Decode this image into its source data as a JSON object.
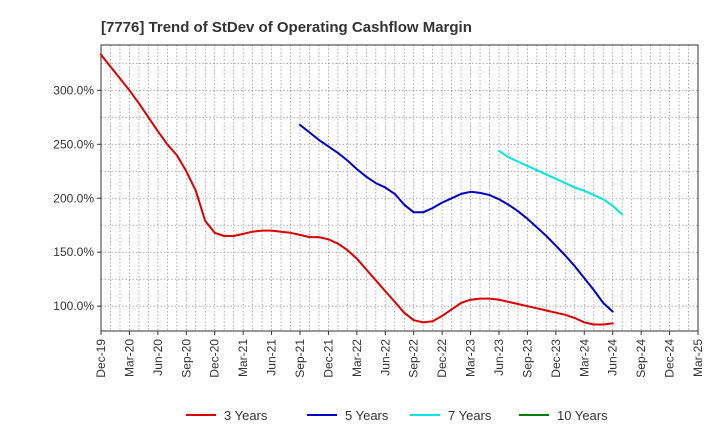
{
  "chart_data": {
    "type": "line",
    "title": "[7776]  Trend of StDev of Operating Cashflow Margin",
    "xlabel": "",
    "ylabel": "",
    "x_ticks": [
      "Dec-19",
      "Mar-20",
      "Jun-20",
      "Sep-20",
      "Dec-20",
      "Mar-21",
      "Jun-21",
      "Sep-21",
      "Dec-21",
      "Mar-22",
      "Jun-22",
      "Sep-22",
      "Dec-22",
      "Mar-23",
      "Jun-23",
      "Sep-23",
      "Dec-23",
      "Mar-24",
      "Jun-24",
      "Sep-24",
      "Dec-24",
      "Mar-25"
    ],
    "y_ticks": [
      {
        "value": 100,
        "label": "100.0%"
      },
      {
        "value": 150,
        "label": "150.0%"
      },
      {
        "value": 200,
        "label": "200.0%"
      },
      {
        "value": 250,
        "label": "250.0%"
      },
      {
        "value": 300,
        "label": "300.0%"
      }
    ],
    "ylim": [
      77,
      342
    ],
    "grid": true,
    "legend_position": "bottom",
    "series": [
      {
        "name": "3 Years",
        "color": "#dd0000",
        "start_index": 0,
        "values": [
          333,
          322,
          311,
          300,
          288,
          275,
          262,
          250,
          240,
          225,
          207,
          179,
          168,
          165,
          165,
          167,
          169,
          170,
          170,
          169,
          168,
          166,
          164,
          164,
          162,
          158,
          152,
          144,
          134,
          124,
          114,
          104,
          94,
          87,
          85,
          86,
          91,
          97,
          103,
          106,
          107,
          107,
          106,
          104,
          102,
          100,
          98,
          96,
          94,
          92,
          89,
          85,
          83,
          83,
          84
        ]
      },
      {
        "name": "5 Years",
        "color": "#0000cc",
        "start_index": 21,
        "values": [
          268,
          261,
          254,
          248,
          242,
          235,
          227,
          220,
          214,
          210,
          204,
          194,
          187,
          187,
          191,
          196,
          200,
          204,
          206,
          205,
          203,
          199,
          194,
          188,
          181,
          173,
          165,
          156,
          147,
          137,
          126,
          115,
          103,
          95
        ]
      },
      {
        "name": "7 Years",
        "color": "#00e5e5",
        "start_index": 42,
        "values": [
          244,
          238,
          234,
          230,
          226,
          222,
          218,
          214,
          210,
          207,
          203,
          199,
          193,
          185
        ]
      },
      {
        "name": "10 Years",
        "color": "#008000",
        "start_index": 0,
        "values": []
      }
    ]
  }
}
